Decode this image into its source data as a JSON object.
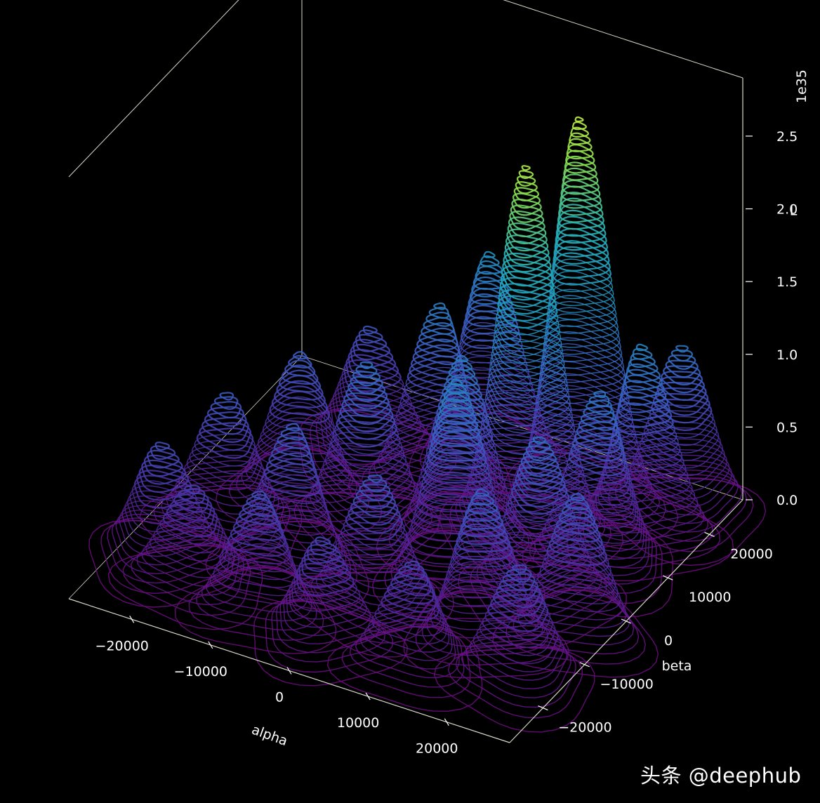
{
  "chart_data": {
    "type": "surface3d-contour",
    "xlabel": "alpha",
    "ylabel": "beta",
    "zlabel": "L",
    "z_offset_label": "1e35",
    "xticks": [
      "−20000",
      "−10000",
      "0",
      "10000",
      "20000"
    ],
    "yticks": [
      "−20000",
      "−10000",
      "0",
      "10000",
      "20000"
    ],
    "zticks": [
      "0.0",
      "0.5",
      "1.0",
      "1.5",
      "2.0",
      "2.5"
    ],
    "xlim": [
      -28000,
      28000
    ],
    "ylim": [
      -28000,
      28000
    ],
    "zlim": [
      0,
      2.9
    ],
    "grid": false,
    "colormap": [
      "#6a0a7a",
      "#4a2a9a",
      "#3a5bbf",
      "#1f8fc0",
      "#26b0b8",
      "#8be04a",
      "#e6f542"
    ],
    "background": "#000000",
    "pane_edge_color": "#d8d8c8",
    "peaks": [
      {
        "alpha": -22000,
        "beta": -17000,
        "L": 0.85
      },
      {
        "alpha": -19000,
        "beta": -7000,
        "L": 0.95
      },
      {
        "alpha": -15000,
        "beta": 3000,
        "L": 1.0
      },
      {
        "alpha": -12000,
        "beta": 14000,
        "L": 0.9
      },
      {
        "alpha": -17000,
        "beta": -19000,
        "L": 0.7
      },
      {
        "alpha": -8000,
        "beta": -20000,
        "L": 0.85
      },
      {
        "alpha": -9000,
        "beta": -10000,
        "L": 1.0
      },
      {
        "alpha": -5000,
        "beta": 0,
        "L": 1.2
      },
      {
        "alpha": -2000,
        "beta": 12000,
        "L": 1.3
      },
      {
        "alpha": 0,
        "beta": 20000,
        "L": 1.45
      },
      {
        "alpha": 1000,
        "beta": -22000,
        "L": 0.75
      },
      {
        "alpha": 3000,
        "beta": -13000,
        "L": 0.95
      },
      {
        "alpha": 8000,
        "beta": -3000,
        "L": 1.4
      },
      {
        "alpha": 11000,
        "beta": 8000,
        "L": 2.6
      },
      {
        "alpha": 13000,
        "beta": 17000,
        "L": 2.7
      },
      {
        "alpha": 12000,
        "beta": -21000,
        "L": 0.75
      },
      {
        "alpha": 16000,
        "beta": -12000,
        "L": 1.05
      },
      {
        "alpha": 18000,
        "beta": -2000,
        "L": 1.15
      },
      {
        "alpha": 21000,
        "beta": 7000,
        "L": 1.25
      },
      {
        "alpha": 22000,
        "beta": 15000,
        "L": 1.35
      },
      {
        "alpha": 24000,
        "beta": -18000,
        "L": 0.85
      },
      {
        "alpha": 25000,
        "beta": -6000,
        "L": 1.0
      },
      {
        "alpha": 24000,
        "beta": 21000,
        "L": 1.2
      },
      {
        "alpha": 5000,
        "beta": 4000,
        "L": 1.3
      }
    ]
  },
  "watermark": "头条 @deephub"
}
